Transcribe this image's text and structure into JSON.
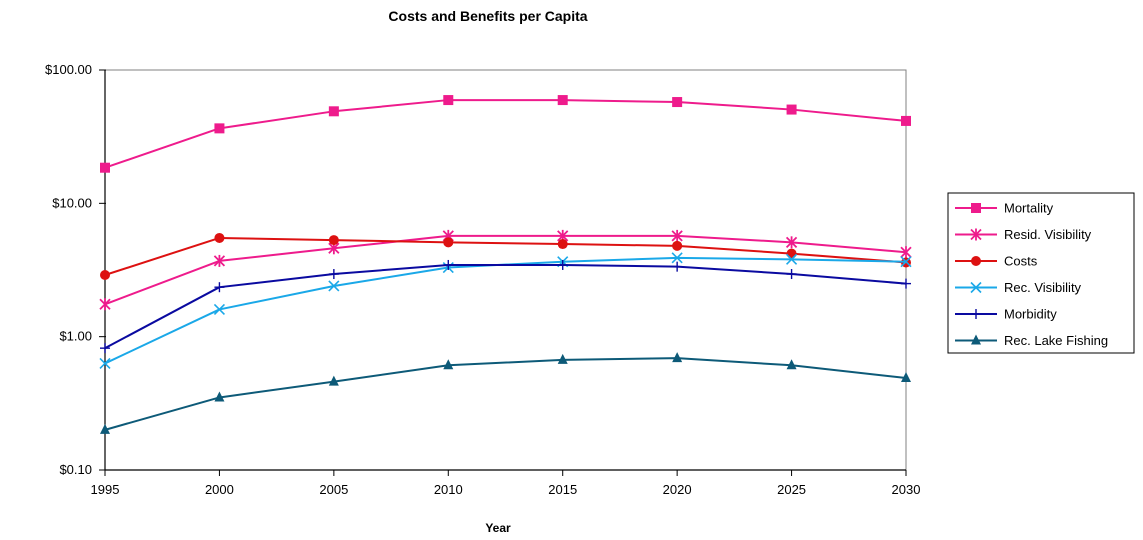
{
  "chart_data": {
    "type": "line",
    "title": "Costs and Benefits per Capita",
    "xlabel": "Year",
    "ylabel": "",
    "y_scale": "log",
    "ylim": [
      0.1,
      100
    ],
    "xlim": [
      1995,
      2030
    ],
    "x": [
      1995,
      2000,
      2005,
      2010,
      2015,
      2020,
      2025,
      2030
    ],
    "x_tick_labels": [
      "1995",
      "2000",
      "2005",
      "2010",
      "2015",
      "2020",
      "2025",
      "2030"
    ],
    "y_tick_values": [
      0.1,
      1,
      10,
      100
    ],
    "y_tick_labels": [
      "$0.10",
      "$1.00",
      "$10.00",
      "$100.00"
    ],
    "grid": false,
    "legend_position": "right",
    "series": [
      {
        "name": "Mortality",
        "color": "#ee1b8c",
        "marker": "square",
        "values": [
          18.5,
          36.5,
          49,
          59.5,
          59.5,
          57.5,
          50.5,
          41.5
        ]
      },
      {
        "name": "Resid. Visibility",
        "color": "#ee1b8c",
        "marker": "asterisk",
        "values": [
          1.75,
          3.7,
          4.6,
          5.7,
          5.7,
          5.7,
          5.1,
          4.3
        ]
      },
      {
        "name": "Costs",
        "color": "#dd1111",
        "marker": "circle",
        "values": [
          2.9,
          5.5,
          5.3,
          5.1,
          4.95,
          4.8,
          4.2,
          3.6
        ]
      },
      {
        "name": "Rec. Visibility",
        "color": "#1aa8e8",
        "marker": "x",
        "values": [
          0.63,
          1.6,
          2.4,
          3.3,
          3.65,
          3.9,
          3.8,
          3.65
        ]
      },
      {
        "name": "Morbidity",
        "color": "#0a0aa0",
        "marker": "plus",
        "values": [
          0.82,
          2.35,
          2.95,
          3.45,
          3.45,
          3.35,
          2.95,
          2.5
        ]
      },
      {
        "name": "Rec. Lake Fishing",
        "color": "#0d5a78",
        "marker": "triangle",
        "values": [
          0.2,
          0.35,
          0.46,
          0.61,
          0.67,
          0.69,
          0.61,
          0.49
        ]
      }
    ]
  }
}
